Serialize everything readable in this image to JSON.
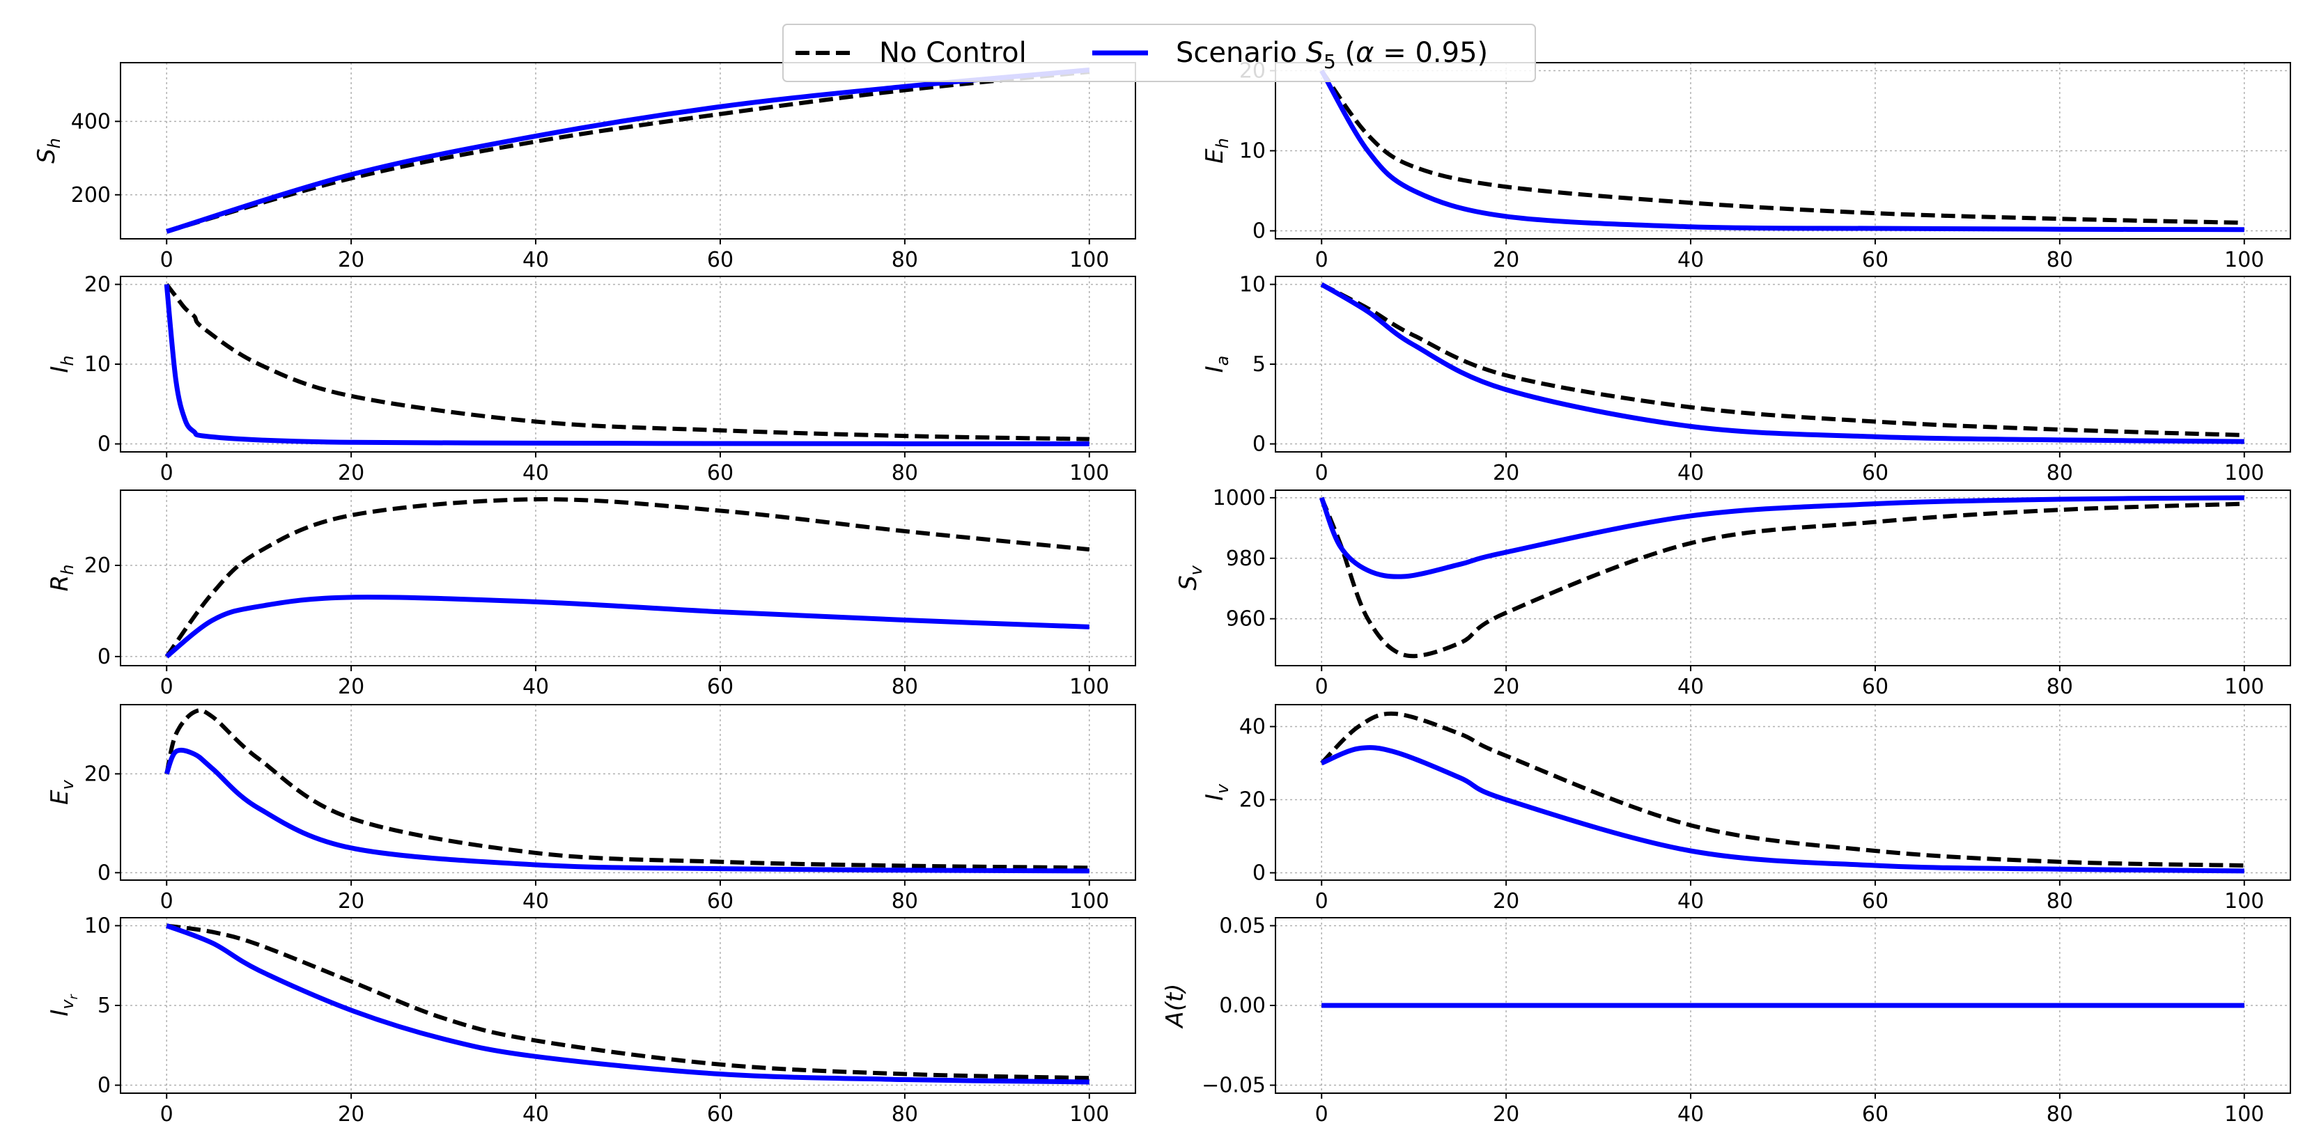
{
  "legend": {
    "entries": [
      {
        "name": "No Control",
        "label": "No Control",
        "color": "#000000",
        "style": "dashed"
      },
      {
        "name": "Scenario S5",
        "label_prefix": "Scenario ",
        "symbol": "S",
        "subscript": "5",
        "paren_open": " (",
        "alpha_symbol": "α",
        "alpha_eq": " = 0.95",
        "paren_close": ")",
        "color": "#0000ff",
        "style": "solid"
      }
    ]
  },
  "chart_data": [
    {
      "type": "line",
      "ylabel": "S",
      "ylabel_sub": "h",
      "x": [
        0,
        20,
        40,
        60,
        80,
        100
      ],
      "series": [
        {
          "name": "No Control",
          "values": [
            100,
            245,
            345,
            420,
            485,
            535
          ]
        },
        {
          "name": "Scenario S5 (α = 0.95)",
          "values": [
            100,
            255,
            360,
            440,
            495,
            540
          ]
        }
      ],
      "xlim": [
        -5,
        105
      ],
      "ylim": [
        80,
        560
      ],
      "yticks": [
        200,
        400
      ],
      "xticks": [
        0,
        20,
        40,
        60,
        80,
        100
      ],
      "xtick_labels": [
        "0",
        "20",
        "40",
        "60",
        "80",
        "100"
      ],
      "ytick_labels": [
        "200",
        "400"
      ]
    },
    {
      "type": "line",
      "ylabel": "E",
      "ylabel_sub": "h",
      "x": [
        0,
        5,
        10,
        20,
        40,
        60,
        80,
        100
      ],
      "series": [
        {
          "name": "No Control",
          "values": [
            20,
            12,
            8,
            5.5,
            3.5,
            2.2,
            1.5,
            1.0
          ]
        },
        {
          "name": "Scenario S5 (α = 0.95)",
          "values": [
            20,
            10,
            5,
            1.8,
            0.5,
            0.3,
            0.2,
            0.15
          ]
        }
      ],
      "xlim": [
        -5,
        105
      ],
      "ylim": [
        -1,
        21
      ],
      "yticks": [
        0,
        10,
        20
      ],
      "xticks": [
        0,
        20,
        40,
        60,
        80,
        100
      ],
      "xtick_labels": [
        "0",
        "20",
        "40",
        "60",
        "80",
        "100"
      ],
      "ytick_labels": [
        "0",
        "10",
        "20"
      ]
    },
    {
      "type": "line",
      "ylabel": "I",
      "ylabel_sub": "h",
      "x": [
        0,
        1,
        2,
        3,
        4,
        10,
        20,
        40,
        60,
        80,
        100
      ],
      "series": [
        {
          "name": "No Control",
          "values": [
            20,
            18.5,
            17,
            16,
            14.5,
            10,
            6,
            2.8,
            1.7,
            1.0,
            0.6
          ]
        },
        {
          "name": "Scenario S5 (α = 0.95)",
          "values": [
            20,
            8,
            3,
            1.5,
            1.0,
            0.5,
            0.2,
            0.1,
            0.05,
            0.02,
            0.01
          ]
        }
      ],
      "xlim": [
        -5,
        105
      ],
      "ylim": [
        -1,
        21
      ],
      "yticks": [
        0,
        10,
        20
      ],
      "xticks": [
        0,
        20,
        40,
        60,
        80,
        100
      ],
      "xtick_labels": [
        "0",
        "20",
        "40",
        "60",
        "80",
        "100"
      ],
      "ytick_labels": [
        "0",
        "10",
        "20"
      ]
    },
    {
      "type": "line",
      "ylabel": "I",
      "ylabel_sub": "a",
      "x": [
        0,
        5,
        10,
        20,
        40,
        60,
        80,
        100
      ],
      "series": [
        {
          "name": "No Control",
          "values": [
            10,
            8.5,
            6.8,
            4.3,
            2.3,
            1.4,
            0.9,
            0.55
          ]
        },
        {
          "name": "Scenario S5 (α = 0.95)",
          "values": [
            10,
            8.3,
            6.2,
            3.4,
            1.1,
            0.45,
            0.25,
            0.15
          ]
        }
      ],
      "xlim": [
        -5,
        105
      ],
      "ylim": [
        -0.5,
        10.5
      ],
      "yticks": [
        0,
        5,
        10
      ],
      "xticks": [
        0,
        20,
        40,
        60,
        80,
        100
      ],
      "xtick_labels": [
        "0",
        "20",
        "40",
        "60",
        "80",
        "100"
      ],
      "ytick_labels": [
        "0",
        "5",
        "10"
      ]
    },
    {
      "type": "line",
      "ylabel": "R",
      "ylabel_sub": "h",
      "x": [
        0,
        5,
        10,
        20,
        40,
        60,
        80,
        100
      ],
      "series": [
        {
          "name": "No Control",
          "values": [
            0,
            14,
            23,
            31,
            34.5,
            32,
            27.5,
            23.5
          ]
        },
        {
          "name": "Scenario S5 (α = 0.95)",
          "values": [
            0,
            8,
            11,
            13,
            12,
            9.8,
            8,
            6.5
          ]
        }
      ],
      "xlim": [
        -5,
        105
      ],
      "ylim": [
        -2,
        36.5
      ],
      "yticks": [
        0,
        20
      ],
      "xticks": [
        0,
        20,
        40,
        60,
        80,
        100
      ],
      "xtick_labels": [
        "0",
        "20",
        "40",
        "60",
        "80",
        "100"
      ],
      "ytick_labels": [
        "0",
        "20"
      ]
    },
    {
      "type": "line",
      "ylabel": "S",
      "ylabel_sub": "v",
      "x": [
        0,
        2,
        5,
        9,
        15,
        20,
        40,
        60,
        80,
        100
      ],
      "series": [
        {
          "name": "No Control",
          "values": [
            1000,
            985,
            960,
            948,
            952,
            962,
            985,
            992,
            996,
            998
          ]
        },
        {
          "name": "Scenario S5 (α = 0.95)",
          "values": [
            1000,
            984,
            976,
            974,
            978,
            982,
            994,
            998,
            999.5,
            1000
          ]
        }
      ],
      "xlim": [
        -5,
        105
      ],
      "ylim": [
        944.5,
        1002.5
      ],
      "yticks": [
        960,
        980,
        1000
      ],
      "xticks": [
        0,
        20,
        40,
        60,
        80,
        100
      ],
      "xtick_labels": [
        "0",
        "20",
        "40",
        "60",
        "80",
        "100"
      ],
      "ytick_labels": [
        "960",
        "980",
        "1000"
      ]
    },
    {
      "type": "line",
      "ylabel": "E",
      "ylabel_sub": "v",
      "x": [
        0,
        1,
        3,
        5,
        10,
        20,
        40,
        60,
        80,
        100
      ],
      "series": [
        {
          "name": "No Control",
          "values": [
            20,
            28,
            32.5,
            31.5,
            23,
            11,
            4,
            2.2,
            1.4,
            1.0
          ]
        },
        {
          "name": "Scenario S5 (α = 0.95)",
          "values": [
            20,
            24.5,
            24,
            21,
            13,
            5,
            1.6,
            0.8,
            0.5,
            0.35
          ]
        }
      ],
      "xlim": [
        -5,
        105
      ],
      "ylim": [
        -1.5,
        34
      ],
      "yticks": [
        0,
        20
      ],
      "xticks": [
        0,
        20,
        40,
        60,
        80,
        100
      ],
      "xtick_labels": [
        "0",
        "20",
        "40",
        "60",
        "80",
        "100"
      ],
      "ytick_labels": [
        "0",
        "20"
      ]
    },
    {
      "type": "line",
      "ylabel": "I",
      "ylabel_sub": "v",
      "x": [
        0,
        4,
        8,
        15,
        20,
        40,
        60,
        80,
        100
      ],
      "series": [
        {
          "name": "No Control",
          "values": [
            30,
            40,
            43.5,
            38,
            32,
            13,
            6,
            3,
            2
          ]
        },
        {
          "name": "Scenario S5 (α = 0.95)",
          "values": [
            30,
            34,
            33,
            26,
            20,
            6,
            2,
            1,
            0.5
          ]
        }
      ],
      "xlim": [
        -5,
        105
      ],
      "ylim": [
        -2,
        46
      ],
      "yticks": [
        0,
        20,
        40
      ],
      "xticks": [
        0,
        20,
        40,
        60,
        80,
        100
      ],
      "xtick_labels": [
        "0",
        "20",
        "40",
        "60",
        "80",
        "100"
      ],
      "ytick_labels": [
        "0",
        "20",
        "40"
      ]
    },
    {
      "type": "line",
      "ylabel": "I",
      "ylabel_sub": "v",
      "ylabel_subsub": "r",
      "x": [
        0,
        5,
        10,
        20,
        30,
        40,
        60,
        80,
        100
      ],
      "series": [
        {
          "name": "No Control",
          "values": [
            10,
            9.6,
            8.8,
            6.5,
            4.2,
            2.8,
            1.3,
            0.7,
            0.45
          ]
        },
        {
          "name": "Scenario S5 (α = 0.95)",
          "values": [
            10,
            8.9,
            7.2,
            4.7,
            2.9,
            1.8,
            0.7,
            0.35,
            0.2
          ]
        }
      ],
      "xlim": [
        -5,
        105
      ],
      "ylim": [
        -0.5,
        10.5
      ],
      "yticks": [
        0,
        5,
        10
      ],
      "xticks": [
        0,
        20,
        40,
        60,
        80,
        100
      ],
      "xtick_labels": [
        "0",
        "20",
        "40",
        "60",
        "80",
        "100"
      ],
      "ytick_labels": [
        "0",
        "5",
        "10"
      ]
    },
    {
      "type": "line",
      "ylabel": "A(t)",
      "x": [
        0,
        100
      ],
      "series": [
        {
          "name": "No Control",
          "values": [
            0,
            0
          ]
        },
        {
          "name": "Scenario S5 (α = 0.95)",
          "values": [
            0,
            0
          ]
        }
      ],
      "xlim": [
        -5,
        105
      ],
      "ylim": [
        -0.055,
        0.055
      ],
      "yticks": [
        -0.05,
        0.0,
        0.05
      ],
      "xticks": [
        0,
        20,
        40,
        60,
        80,
        100
      ],
      "xtick_labels": [
        "0",
        "20",
        "40",
        "60",
        "80",
        "100"
      ],
      "ytick_labels": [
        "−0.05",
        "0.00",
        "0.05"
      ]
    }
  ],
  "colors": {
    "no_control": "#000000",
    "scenario": "#0000ff",
    "grid": "#b0b0b0"
  }
}
